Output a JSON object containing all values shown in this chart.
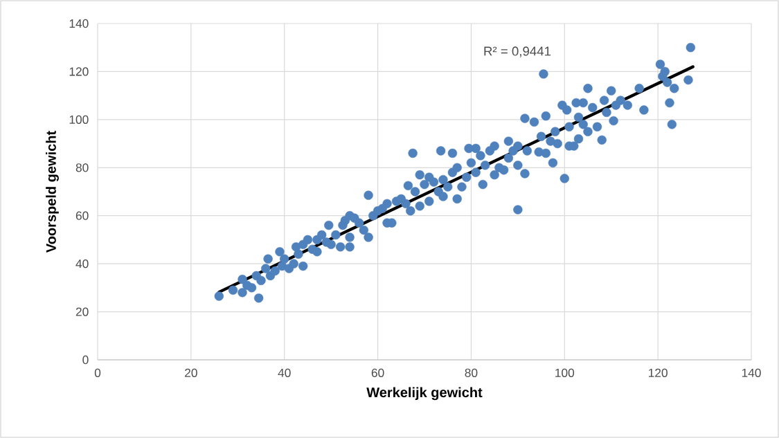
{
  "chart_data": {
    "type": "scatter",
    "xlabel": "Werkelijk gewicht",
    "ylabel": "Voorspeld gewicht",
    "xlim": [
      0,
      140
    ],
    "ylim": [
      0,
      140
    ],
    "xticks": [
      0,
      20,
      40,
      60,
      80,
      100,
      120,
      140
    ],
    "yticks": [
      0,
      20,
      40,
      60,
      80,
      100,
      120,
      140
    ],
    "grid": true,
    "annotations": [
      "R² = 0,9441"
    ],
    "series": [
      {
        "marker": "circle",
        "color": "#4f81bd",
        "x": [
          26,
          29,
          31,
          31,
          32,
          33,
          34,
          34.5,
          35,
          36,
          36.5,
          37,
          38,
          39,
          39.5,
          40,
          41,
          42,
          42.5,
          43,
          44,
          44,
          45,
          46,
          47,
          47,
          48,
          49,
          49.5,
          50,
          51,
          52,
          52.5,
          53,
          54,
          54,
          54,
          55,
          56,
          57,
          58,
          58,
          59,
          60,
          61,
          62,
          62,
          63,
          64,
          65,
          66,
          66.5,
          67,
          67.5,
          68,
          69,
          69,
          70,
          71,
          71,
          72,
          73,
          73.5,
          74,
          74,
          75,
          76,
          76,
          77,
          77,
          78,
          79,
          79.5,
          80,
          81,
          81,
          82,
          82.5,
          83,
          84,
          85,
          85,
          86,
          87,
          88,
          88,
          89,
          90,
          90,
          90,
          91.5,
          91.5,
          92,
          93.5,
          94.5,
          95,
          95.5,
          96,
          96,
          97,
          97.5,
          98,
          98.5,
          99.5,
          100,
          100.5,
          101,
          101,
          102,
          102.5,
          103,
          103,
          104,
          104,
          105,
          105,
          106,
          107,
          108,
          108.5,
          109,
          110,
          110.5,
          111,
          112,
          113.5,
          116,
          117,
          120.5,
          121,
          121.5,
          122,
          122.5,
          123,
          123.5,
          126.5,
          127
        ],
        "values": [
          26.5,
          29,
          28,
          33.5,
          31,
          30,
          35,
          25.7,
          33,
          38,
          42,
          35,
          37,
          45,
          39,
          42,
          38,
          40,
          47,
          44,
          39,
          48,
          50,
          46,
          45,
          50,
          52,
          49,
          56,
          48,
          52,
          47,
          56,
          58,
          47,
          51,
          60,
          59,
          57,
          54,
          51,
          68.5,
          60,
          62,
          63,
          57,
          65,
          57,
          66,
          67,
          65,
          72.5,
          62,
          86,
          70,
          77,
          64,
          73,
          66,
          76,
          74,
          70,
          87,
          75,
          68,
          72,
          78,
          86,
          67,
          80,
          72,
          76,
          88,
          82,
          88,
          78,
          85,
          73,
          81,
          87,
          89,
          77,
          80,
          79,
          91,
          84,
          87,
          62.5,
          81,
          89,
          100.5,
          77.5,
          87,
          99,
          86.5,
          93,
          119,
          101.5,
          86,
          91,
          82,
          95,
          90,
          106,
          75.5,
          104,
          97,
          89,
          89,
          107,
          101,
          92,
          107,
          98,
          113,
          95,
          105,
          97,
          91.5,
          108,
          103,
          112,
          99.5,
          106,
          108,
          106,
          113,
          104,
          123,
          118,
          120,
          115.5,
          107,
          98,
          113,
          116.5,
          130
        ]
      },
      {
        "type": "line",
        "marker": "none",
        "color": "#000000",
        "x": [
          26,
          127.5
        ],
        "values": [
          28.2,
          122
        ]
      }
    ]
  }
}
